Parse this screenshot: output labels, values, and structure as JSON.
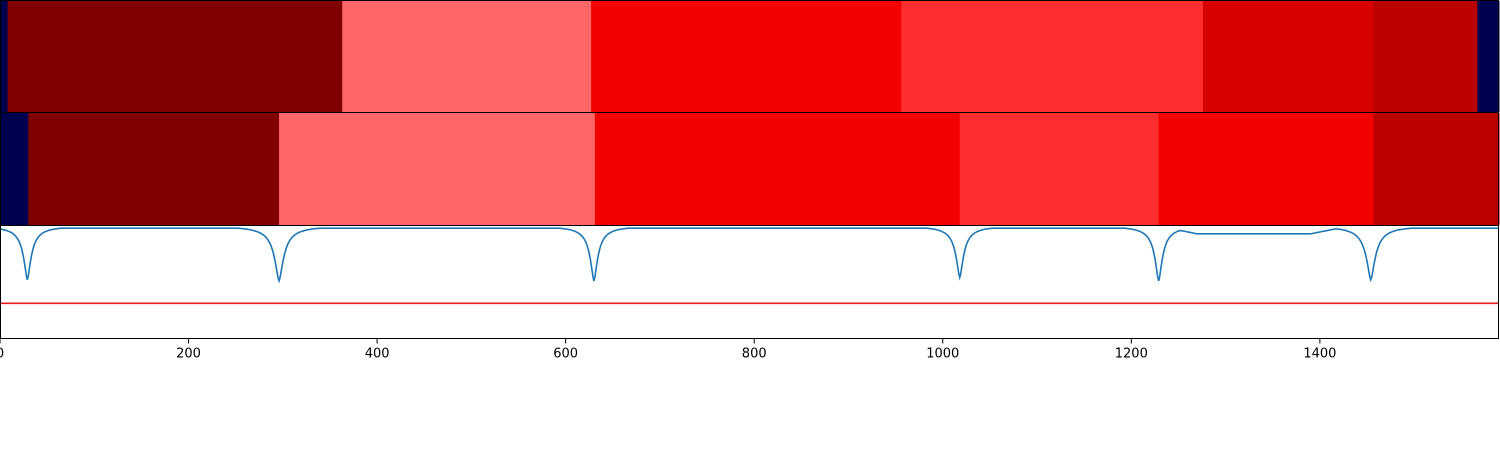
{
  "chart_data": {
    "type": "heatmap",
    "title": "",
    "xlabel": "",
    "ylabel": "",
    "xlim": [
      0,
      1590
    ],
    "xticks": [
      0,
      200,
      400,
      600,
      800,
      1000,
      1200,
      1400
    ],
    "xtick_labels": [
      "0",
      "200",
      "400",
      "600",
      "800",
      "1000",
      "1200",
      "1400"
    ],
    "panels": [
      {
        "kind": "segment-strip",
        "segments": [
          {
            "start": 0,
            "end": 8,
            "color": "#000050"
          },
          {
            "start": 8,
            "end": 363,
            "color": "#800000"
          },
          {
            "start": 363,
            "end": 627,
            "color": "#ff6666"
          },
          {
            "start": 627,
            "end": 956,
            "color": "#f50000"
          },
          {
            "start": 956,
            "end": 1276,
            "color": "#ff2e2e"
          },
          {
            "start": 1276,
            "end": 1457,
            "color": "#d90000"
          },
          {
            "start": 1457,
            "end": 1567,
            "color": "#bb0000"
          },
          {
            "start": 1567,
            "end": 1590,
            "color": "#000050"
          }
        ]
      },
      {
        "kind": "segment-strip",
        "segments": [
          {
            "start": 0,
            "end": 30,
            "color": "#000050"
          },
          {
            "start": 30,
            "end": 296,
            "color": "#800000"
          },
          {
            "start": 296,
            "end": 631,
            "color": "#ff6666"
          },
          {
            "start": 631,
            "end": 1018,
            "color": "#f50000"
          },
          {
            "start": 1018,
            "end": 1229,
            "color": "#ff2e2e"
          },
          {
            "start": 1229,
            "end": 1457,
            "color": "#f50000"
          },
          {
            "start": 1457,
            "end": 1590,
            "color": "#bb0000"
          }
        ]
      },
      {
        "kind": "line",
        "ylim": [
          -1,
          0
        ],
        "series": [
          {
            "color": "#1f77b4",
            "baseline": -0.02,
            "dips": [
              {
                "x": 29,
                "depth": -0.48,
                "width": 5
              },
              {
                "x": 296,
                "depth": -0.49,
                "width": 6
              },
              {
                "x": 630,
                "depth": -0.49,
                "width": 5
              },
              {
                "x": 1018,
                "depth": -0.46,
                "width": 5
              },
              {
                "x": 1229,
                "depth": -0.49,
                "width": 5
              },
              {
                "x": 1454,
                "depth": -0.48,
                "width": 6
              }
            ],
            "plateaus": [
              {
                "from": 1240,
                "to": 1420,
                "level": -0.07
              }
            ]
          }
        ],
        "hlines": [
          {
            "y": -0.69,
            "color": "#e41a1c"
          }
        ]
      }
    ]
  }
}
